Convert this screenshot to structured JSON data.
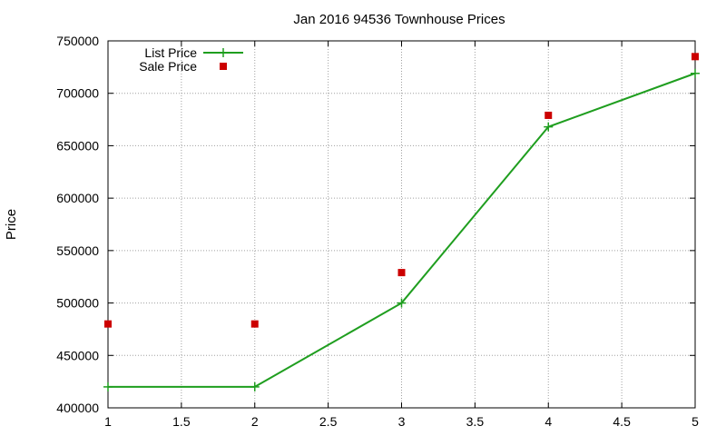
{
  "chart_data": {
    "type": "line",
    "title": "Jan 2016 94536 Townhouse Prices",
    "xlabel": "",
    "ylabel": "Price",
    "xlim": [
      1,
      5
    ],
    "ylim": [
      400000,
      750000
    ],
    "x_ticks": [
      "1",
      "1.5",
      "2",
      "2.5",
      "3",
      "3.5",
      "4",
      "4.5",
      "5"
    ],
    "y_ticks": [
      "400000",
      "450000",
      "500000",
      "550000",
      "600000",
      "650000",
      "700000",
      "750000"
    ],
    "grid": true,
    "legend_position": "top-left",
    "series": [
      {
        "name": "List Price",
        "style": "lines+points",
        "marker": "plus",
        "color": "#1f9e1f",
        "x": [
          1,
          2,
          3,
          4,
          5
        ],
        "values": [
          420000,
          420000,
          500000,
          668000,
          719000
        ]
      },
      {
        "name": "Sale Price",
        "style": "points",
        "marker": "square",
        "color": "#cc0000",
        "x": [
          1,
          2,
          3,
          4,
          5
        ],
        "values": [
          480000,
          480000,
          529000,
          679000,
          735000
        ]
      }
    ]
  }
}
